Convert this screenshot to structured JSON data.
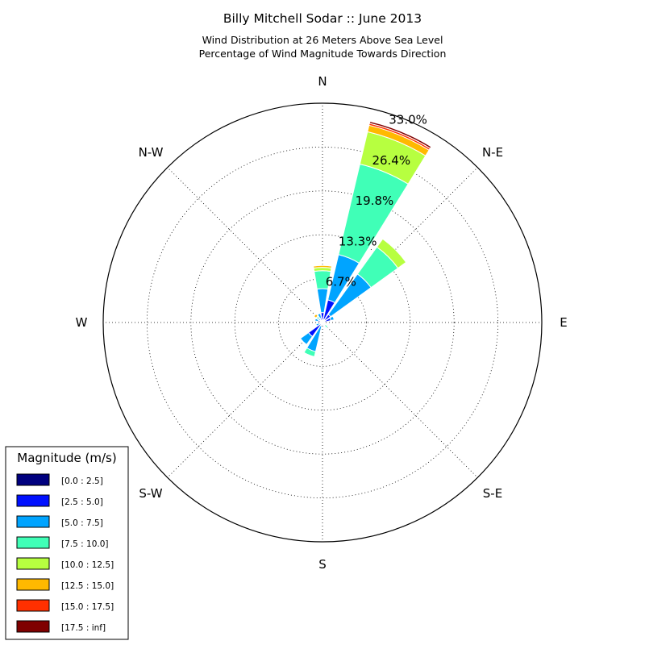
{
  "chart_data": {
    "type": "windrose",
    "title": "Billy Mitchell Sodar :: June 2013",
    "subtitle_lines": [
      "Wind Distribution at 26 Meters Above Sea Level",
      "Percentage of Wind Magnitude Towards Direction"
    ],
    "directions": [
      "N",
      "N-E",
      "E",
      "S-E",
      "S",
      "S-W",
      "W",
      "N-W"
    ],
    "ring_labels": [
      "6.7%",
      "13.3%",
      "19.8%",
      "26.4%",
      "33.0%"
    ],
    "rmax": 33.0,
    "legend": {
      "title": "Magnitude (m/s)",
      "bins": [
        "[0.0 : 2.5]",
        "[2.5 : 5.0]",
        "[5.0 : 7.5]",
        "[7.5 : 10.0]",
        "[10.0 : 12.5]",
        "[12.5 : 15.0]",
        "[15.0 : 17.5]",
        "[17.5 : inf]"
      ],
      "colors": [
        "#00007f",
        "#0010ff",
        "#00a4ff",
        "#40ffb7",
        "#b7ff40",
        "#ffb900",
        "#ff3000",
        "#7f0000"
      ]
    },
    "sector_width_deg": 22.5,
    "sectors": [
      {
        "direction_deg": 0,
        "values": [
          0.3,
          1.2,
          3.6,
          2.7,
          0.5,
          0.3,
          0.1,
          0.0
        ]
      },
      {
        "direction_deg": 22.5,
        "values": [
          0.5,
          3.0,
          7.0,
          14.0,
          5.0,
          1.0,
          0.3,
          0.3
        ]
      },
      {
        "direction_deg": 45,
        "values": [
          0.5,
          1.0,
          7.5,
          5.0,
          1.5,
          0.0,
          0.0,
          0.0
        ]
      },
      {
        "direction_deg": 67.5,
        "values": [
          0.3,
          1.0,
          0.5,
          0.0,
          0.0,
          0.0,
          0.0,
          0.0
        ]
      },
      {
        "direction_deg": 90,
        "values": [
          0.1,
          0.2,
          0.0,
          0.0,
          0.0,
          0.0,
          0.0,
          0.0
        ]
      },
      {
        "direction_deg": 112.5,
        "values": [
          0.0,
          0.0,
          0.0,
          0.0,
          0.0,
          0.0,
          0.0,
          0.0
        ]
      },
      {
        "direction_deg": 135,
        "values": [
          0.2,
          0.3,
          0.0,
          0.5,
          0.0,
          0.0,
          0.0,
          0.0
        ]
      },
      {
        "direction_deg": 157.5,
        "values": [
          0.0,
          0.0,
          0.0,
          0.0,
          0.0,
          0.0,
          0.0,
          0.0
        ]
      },
      {
        "direction_deg": 180,
        "values": [
          0.0,
          0.0,
          0.0,
          0.0,
          0.0,
          0.0,
          0.0,
          0.0
        ]
      },
      {
        "direction_deg": 202.5,
        "values": [
          0.2,
          0.3,
          4.0,
          0.8,
          0.0,
          0.0,
          0.0,
          0.0
        ]
      },
      {
        "direction_deg": 225,
        "values": [
          0.1,
          2.5,
          1.5,
          0.0,
          0.0,
          0.0,
          0.0,
          0.0
        ]
      },
      {
        "direction_deg": 247.5,
        "values": [
          0.1,
          0.3,
          0.6,
          0.0,
          0.0,
          0.0,
          0.0,
          0.0
        ]
      },
      {
        "direction_deg": 270,
        "values": [
          0.1,
          0.2,
          0.0,
          0.0,
          0.0,
          0.0,
          0.0,
          0.0
        ]
      },
      {
        "direction_deg": 292.5,
        "values": [
          0.1,
          0.6,
          0.5,
          0.0,
          0.0,
          0.1,
          0.0,
          0.0
        ]
      },
      {
        "direction_deg": 315,
        "values": [
          0.2,
          0.3,
          0.3,
          0.3,
          0.1,
          0.4,
          0.0,
          0.0
        ]
      },
      {
        "direction_deg": 337.5,
        "values": [
          0.3,
          0.4,
          0.7,
          0.0,
          0.0,
          0.0,
          0.0,
          0.0
        ]
      }
    ]
  }
}
